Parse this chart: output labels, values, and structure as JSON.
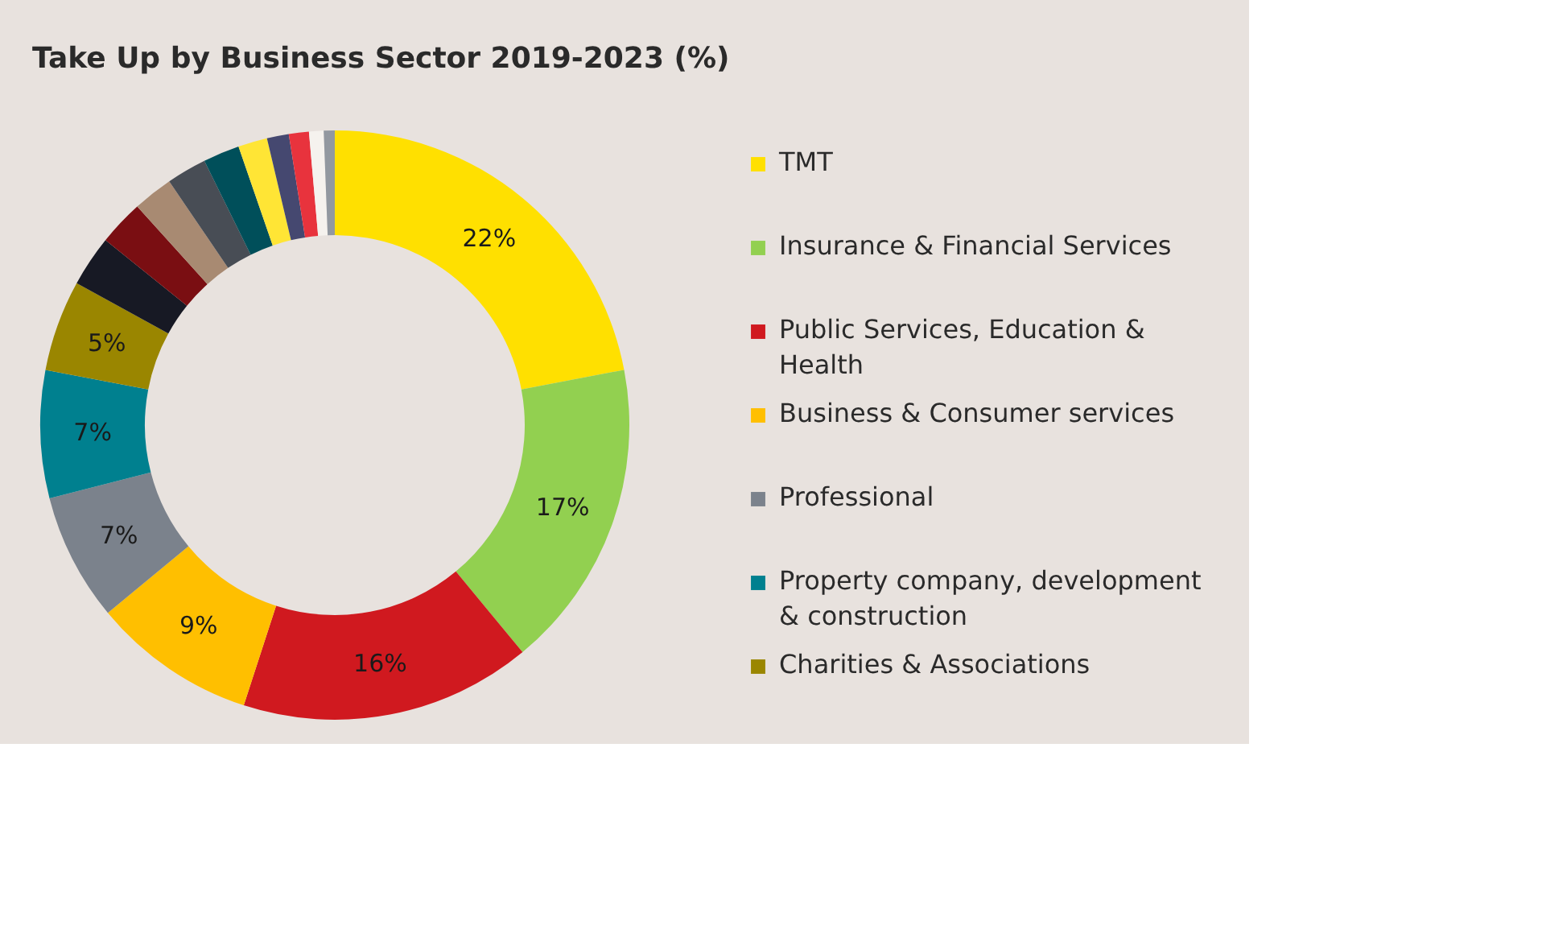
{
  "chart_data": {
    "type": "donut",
    "title": "Take Up by Business Sector 2019-2023 (%)",
    "categories": [
      "TMT",
      "Insurance & Financial Services",
      "Public Services, Education & Health",
      "Business & Consumer services",
      "Professional",
      "Property company, development & construction",
      "Charities & Associations",
      null,
      null,
      null,
      null,
      null,
      null,
      null,
      null,
      null,
      null
    ],
    "values": [
      22,
      17,
      16,
      9,
      7,
      7,
      5,
      2.8,
      2.5,
      2.2,
      2.2,
      2,
      1.6,
      1.2,
      1.1,
      0.8,
      0.6
    ],
    "value_labels": [
      "22%",
      "17%",
      "16%",
      "9%",
      "7%",
      "7%",
      "5%",
      null,
      null,
      null,
      null,
      null,
      null,
      null,
      null,
      null,
      null
    ],
    "colors": [
      "#ffe000",
      "#92d050",
      "#d0191f",
      "#ffbf00",
      "#7b828c",
      "#00808f",
      "#9a8600",
      "#171924",
      "#7a0e12",
      "#a88a72",
      "#484d55",
      "#004f5a",
      "#ffe535",
      "#454870",
      "#e8333d",
      "#f5f2ee",
      "#9298a0"
    ],
    "legend": "right"
  }
}
